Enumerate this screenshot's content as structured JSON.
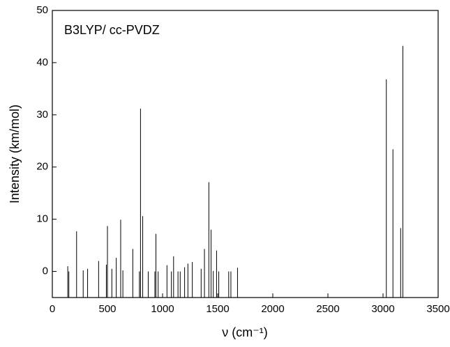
{
  "chart_data": {
    "type": "stick",
    "annotation": "B3LYP/ cc-PVDZ",
    "xlabel": "ν (cm⁻¹)",
    "ylabel": "Intensity (km/mol)",
    "x": [
      140,
      150,
      220,
      280,
      320,
      420,
      490,
      500,
      540,
      580,
      620,
      640,
      730,
      790,
      800,
      820,
      870,
      930,
      940,
      960,
      1040,
      1080,
      1100,
      1140,
      1160,
      1200,
      1230,
      1270,
      1350,
      1380,
      1420,
      1440,
      1460,
      1490,
      1510,
      1600,
      1620,
      1680,
      3030,
      3090,
      3160,
      3180
    ],
    "values": [
      1,
      0,
      7.7,
      0.2,
      0.5,
      2,
      1.3,
      8.7,
      0.5,
      2.6,
      9.9,
      0.2,
      4.3,
      0,
      31.2,
      10.6,
      0,
      0,
      7.2,
      0,
      1.2,
      0,
      2.9,
      0,
      0,
      0.8,
      1.5,
      1.8,
      0.5,
      4.3,
      17.1,
      8,
      0.1,
      4,
      0,
      0,
      0,
      0.7,
      36.8,
      23.4,
      8.3,
      43.2
    ],
    "color": "#000000",
    "xlim": [
      0,
      3500
    ],
    "xticks": [
      0,
      500,
      1000,
      1500,
      2000,
      2500,
      3000,
      3500
    ],
    "ylim": [
      -5,
      50
    ],
    "yticks": [
      0,
      10,
      20,
      30,
      40,
      50
    ]
  }
}
